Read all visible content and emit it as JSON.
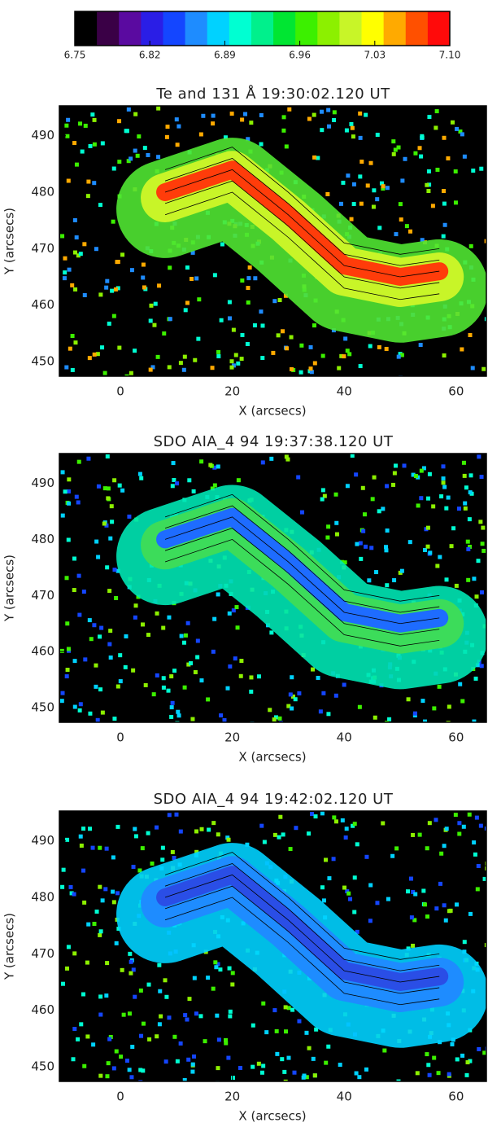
{
  "chart_data": [
    {
      "type": "colorbar",
      "colors": [
        "#000000",
        "#3a0046",
        "#5a0aa0",
        "#2a1ee6",
        "#1446ff",
        "#1e8cff",
        "#00d2ff",
        "#00ffd2",
        "#00f08c",
        "#00e632",
        "#3cf000",
        "#8cf000",
        "#c8f528",
        "#ffff00",
        "#ffaa00",
        "#ff5000",
        "#ff0a0a"
      ],
      "xlim": [
        6.75,
        7.1
      ],
      "xticks": [
        6.75,
        6.82,
        6.89,
        6.96,
        7.03,
        {
          "value": 7.1,
          "label": "7.10"
        }
      ]
    },
    {
      "type": "image",
      "title": "Te and 131 Å 19:30:02.120 UT",
      "xlabel": "X (arcsecs)",
      "ylabel": "Y (arcsecs)",
      "xlim": [
        -10.9,
        65.4
      ],
      "ylim": [
        447.4,
        495.3
      ],
      "xticks": [
        0,
        20,
        40,
        60
      ],
      "yticks": [
        450,
        460,
        470,
        480,
        490
      ]
    },
    {
      "type": "image",
      "title": "SDO AIA_4 94 19:37:38.120 UT",
      "xlabel": "X (arcsecs)",
      "ylabel": "Y (arcsecs)",
      "xlim": [
        -10.9,
        65.4
      ],
      "ylim": [
        447.4,
        495.3
      ],
      "xticks": [
        0,
        20,
        40,
        60
      ],
      "yticks": [
        450,
        460,
        470,
        480,
        490
      ]
    },
    {
      "type": "image",
      "title": "SDO AIA_4 94 19:42:02.120 UT",
      "xlabel": "X (arcsecs)",
      "ylabel": "Y (arcsecs)",
      "xlim": [
        -10.9,
        65.4
      ],
      "ylim": [
        447.4,
        495.3
      ],
      "xticks": [
        0,
        20,
        40,
        60
      ],
      "yticks": [
        450,
        460,
        470,
        480,
        490
      ]
    }
  ]
}
